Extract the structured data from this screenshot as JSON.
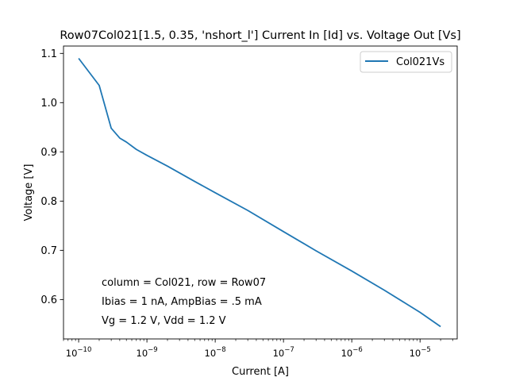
{
  "chart_data": {
    "type": "line",
    "title": "Row07Col021[1.5, 0.35, 'nshort_l'] Current In [Id] vs. Voltage Out [Vs]",
    "xlabel": "Current [A]",
    "ylabel": "Voltage [V]",
    "xscale": "log",
    "xlim": [
      6e-11,
      3.5e-05
    ],
    "ylim": [
      0.52,
      1.115
    ],
    "x_ticks": [
      {
        "value": 1e-10,
        "base": "10",
        "exp": "−10"
      },
      {
        "value": 1e-09,
        "base": "10",
        "exp": "−9"
      },
      {
        "value": 1e-08,
        "base": "10",
        "exp": "−8"
      },
      {
        "value": 1e-07,
        "base": "10",
        "exp": "−7"
      },
      {
        "value": 1e-06,
        "base": "10",
        "exp": "−6"
      },
      {
        "value": 1e-05,
        "base": "10",
        "exp": "−5"
      }
    ],
    "y_ticks": [
      {
        "value": 0.6,
        "label": "0.6"
      },
      {
        "value": 0.7,
        "label": "0.7"
      },
      {
        "value": 0.8,
        "label": "0.8"
      },
      {
        "value": 0.9,
        "label": "0.9"
      },
      {
        "value": 1.0,
        "label": "1.0"
      },
      {
        "value": 1.1,
        "label": "1.1"
      }
    ],
    "series": [
      {
        "name": "Col021Vs",
        "color": "#1f77b4",
        "x": [
          1e-10,
          2e-10,
          3e-10,
          4e-10,
          5e-10,
          7e-10,
          1e-09,
          2e-09,
          5e-09,
          1e-08,
          3e-08,
          1e-07,
          3e-07,
          1e-06,
          3e-06,
          1e-05,
          2e-05
        ],
        "y": [
          1.09,
          1.035,
          0.948,
          0.928,
          0.92,
          0.905,
          0.893,
          0.871,
          0.84,
          0.817,
          0.781,
          0.738,
          0.699,
          0.658,
          0.619,
          0.574,
          0.545
        ]
      }
    ],
    "legend": {
      "position": "upper right",
      "entries": [
        "Col021Vs"
      ]
    },
    "grid": false,
    "annotations": [
      "column = Col021, row = Row07",
      "Ibias = 1 nA, AmpBias = .5 mA",
      "Vg = 1.2 V, Vdd = 1.2 V"
    ]
  }
}
